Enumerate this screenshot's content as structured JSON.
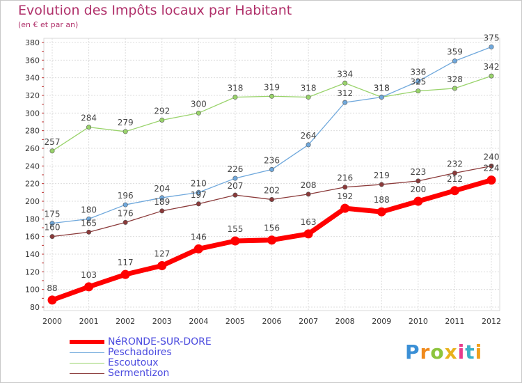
{
  "header": {
    "title": "Evolution des Impôts locaux par Habitant",
    "subtitle": "(en € et par an)"
  },
  "logo": {
    "text": "Proxiti",
    "colors": [
      "#3a8fd6",
      "#f08a1c",
      "#8cc43c",
      "#e8b21c",
      "#e83c8c",
      "#3cb0c8",
      "#f0a01c"
    ]
  },
  "chart_data": {
    "type": "line",
    "x": [
      2000,
      2001,
      2002,
      2003,
      2004,
      2005,
      2006,
      2007,
      2008,
      2009,
      2010,
      2011,
      2012
    ],
    "ylim": [
      80,
      380
    ],
    "yticks": [
      80,
      100,
      120,
      140,
      160,
      180,
      200,
      220,
      240,
      260,
      280,
      300,
      320,
      340,
      360,
      380
    ],
    "grid": true,
    "legend_position": "bottom-left",
    "series": [
      {
        "name": "NéRONDE-SUR-DORE",
        "color": "#ff0000",
        "values": [
          88,
          103,
          117,
          127,
          146,
          155,
          156,
          163,
          192,
          188,
          200,
          212,
          224
        ]
      },
      {
        "name": "Peschadoires",
        "color": "#6fa8dc",
        "values": [
          175,
          180,
          196,
          204,
          210,
          226,
          236,
          264,
          312,
          318,
          336,
          359,
          375
        ]
      },
      {
        "name": "Escoutoux",
        "color": "#99d36b",
        "values": [
          257,
          284,
          279,
          292,
          300,
          318,
          319,
          318,
          334,
          318,
          325,
          328,
          342
        ]
      },
      {
        "name": "Sermentizon",
        "color": "#8b3a3a",
        "values": [
          160,
          165,
          176,
          189,
          197,
          207,
          202,
          208,
          216,
          219,
          223,
          232,
          240
        ]
      }
    ]
  }
}
